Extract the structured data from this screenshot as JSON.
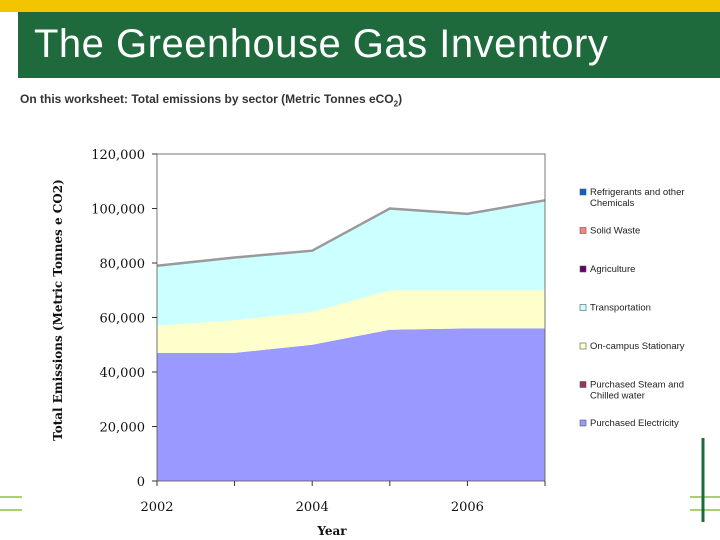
{
  "header": {
    "title": "The Greenhouse Gas Inventory",
    "subtitle": "On this worksheet:  Total emissions by sector (Metric Tonnes eCO",
    "subtitle_sub": "2",
    "subtitle_tail": ")"
  },
  "colors": {
    "title_bar": "#1f6a3c",
    "top_stripe": "#f2c500"
  },
  "chart_data": {
    "type": "area",
    "stacked": true,
    "xlabel": "Year",
    "ylabel": "Total Emissions (Metric Tonnes e CO2)",
    "x": [
      2002,
      2003,
      2004,
      2005,
      2006,
      2007
    ],
    "xlim": [
      2002,
      2007
    ],
    "ylim": [
      0,
      120000
    ],
    "x_tick_labels": [
      "2002",
      "2004",
      "2006"
    ],
    "y_tick_labels": [
      "0",
      "20,000",
      "40,000",
      "60,000",
      "80,000",
      "100,000",
      "120,000"
    ],
    "grid": false,
    "legend_position": "right",
    "series": [
      {
        "name": "Purchased Electricity",
        "color": "#9999ff",
        "values": [
          47000,
          47000,
          50000,
          55500,
          56000,
          56000
        ]
      },
      {
        "name": "Purchased Steam and Chilled water",
        "color": "#993366",
        "values": [
          0,
          0,
          0,
          0,
          0,
          0
        ]
      },
      {
        "name": "On-campus Stationary",
        "color": "#ffffcc",
        "values": [
          10000,
          12000,
          12000,
          14500,
          14000,
          14000
        ]
      },
      {
        "name": "Transportation",
        "color": "#ccffff",
        "values": [
          22000,
          23000,
          22500,
          30000,
          28000,
          33000
        ]
      },
      {
        "name": "Agriculture",
        "color": "#660066",
        "values": [
          0,
          0,
          0,
          0,
          0,
          0
        ]
      },
      {
        "name": "Solid Waste",
        "color": "#ff8080",
        "values": [
          0,
          0,
          0,
          0,
          0,
          0
        ]
      },
      {
        "name": "Refrigerants and other Chemicals",
        "color": "#0066cc",
        "values": [
          0,
          0,
          0,
          0,
          0,
          0
        ]
      }
    ],
    "legend": [
      {
        "lines": [
          "Refrigerants and other",
          "Chemicals"
        ],
        "color": "#0066cc"
      },
      {
        "lines": [
          "Solid Waste"
        ],
        "color": "#ff8080"
      },
      {
        "lines": [
          "Agriculture"
        ],
        "color": "#660066"
      },
      {
        "lines": [
          "Transportation"
        ],
        "color": "#ccffff"
      },
      {
        "lines": [
          "On-campus Stationary"
        ],
        "color": "#ffffcc"
      },
      {
        "lines": [
          "Purchased Steam and",
          "Chilled water"
        ],
        "color": "#993366"
      },
      {
        "lines": [
          "Purchased Electricity"
        ],
        "color": "#9999ff"
      }
    ]
  }
}
